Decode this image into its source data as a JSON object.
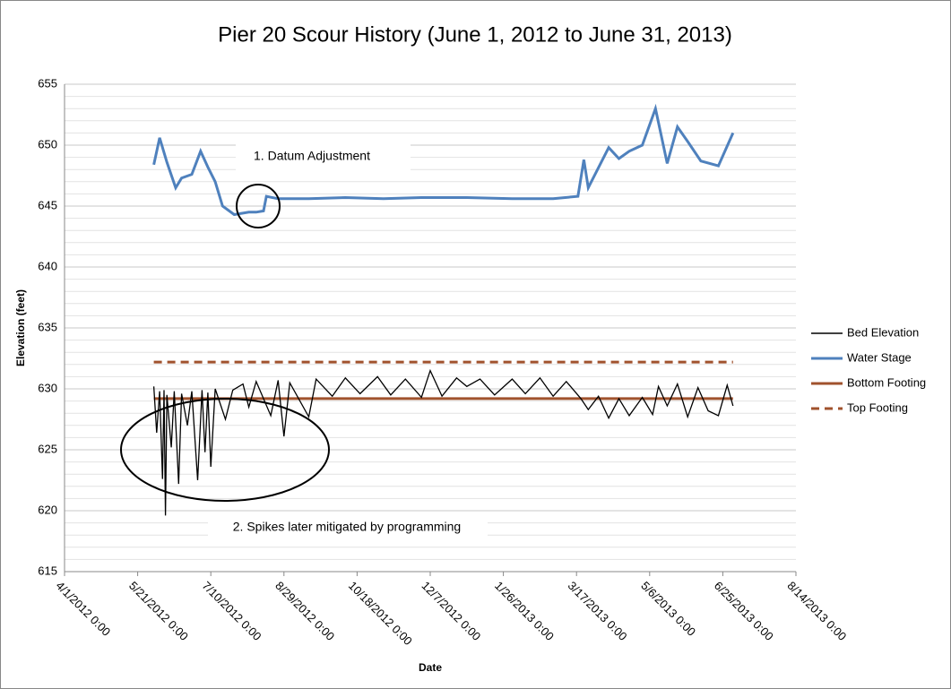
{
  "chart_data": {
    "type": "line",
    "title": "Pier 20 Scour History (June 1, 2012 to June 31, 2013)",
    "x_label": "Date",
    "y_label": "Elevation (feet)",
    "xlim": [
      "2012-04-01",
      "2013-08-14"
    ],
    "xticks": [
      {
        "value": "2012-04-01",
        "label": "4/1/2012 0:00"
      },
      {
        "value": "2012-05-21",
        "label": "5/21/2012 0:00"
      },
      {
        "value": "2012-07-10",
        "label": "7/10/2012 0:00"
      },
      {
        "value": "2012-08-29",
        "label": "8/29/2012 0:00"
      },
      {
        "value": "2012-10-18",
        "label": "10/18/2012 0:00"
      },
      {
        "value": "2012-12-07",
        "label": "12/7/2012 0:00"
      },
      {
        "value": "2013-01-26",
        "label": "1/26/2013 0:00"
      },
      {
        "value": "2013-03-17",
        "label": "3/17/2013 0:00"
      },
      {
        "value": "2013-05-06",
        "label": "5/6/2013 0:00"
      },
      {
        "value": "2013-06-25",
        "label": "6/25/2013 0:00"
      },
      {
        "value": "2013-08-14",
        "label": "8/14/2013 0:00"
      }
    ],
    "ylim": [
      615,
      655
    ],
    "yticks": [
      615,
      620,
      625,
      630,
      635,
      640,
      645,
      650,
      655
    ],
    "grid": true,
    "minor_grid_interval": 1,
    "legend": "right",
    "annotations": [
      "1. Datum Adjustment",
      "2. Spikes later mitigated by programming"
    ],
    "series": [
      {
        "name": "Bed Elevation",
        "color": "#000000",
        "dash": false,
        "x": [
          "2012-06-01",
          "2012-06-03",
          "2012-06-05",
          "2012-06-07",
          "2012-06-08",
          "2012-06-09",
          "2012-06-10",
          "2012-06-13",
          "2012-06-15",
          "2012-06-18",
          "2012-06-20",
          "2012-06-24",
          "2012-06-27",
          "2012-07-01",
          "2012-07-04",
          "2012-07-06",
          "2012-07-08",
          "2012-07-10",
          "2012-07-13",
          "2012-07-20",
          "2012-07-25",
          "2012-08-01",
          "2012-08-05",
          "2012-08-10",
          "2012-08-20",
          "2012-08-25",
          "2012-08-29",
          "2012-09-02",
          "2012-09-15",
          "2012-09-20",
          "2012-10-01",
          "2012-10-10",
          "2012-10-20",
          "2012-11-01",
          "2012-11-10",
          "2012-11-20",
          "2012-12-01",
          "2012-12-07",
          "2012-12-15",
          "2012-12-25",
          "2013-01-01",
          "2013-01-10",
          "2013-01-20",
          "2013-02-01",
          "2013-02-10",
          "2013-02-20",
          "2013-03-01",
          "2013-03-10",
          "2013-03-20",
          "2013-03-25",
          "2013-04-01",
          "2013-04-08",
          "2013-04-15",
          "2013-04-22",
          "2013-05-01",
          "2013-05-08",
          "2013-05-12",
          "2013-05-18",
          "2013-05-25",
          "2013-06-01",
          "2013-06-08",
          "2013-06-15",
          "2013-06-22",
          "2013-06-28",
          "2013-07-02"
        ],
        "values": [
          630.2,
          626.4,
          629.8,
          622.6,
          629.9,
          619.6,
          629.5,
          625.2,
          629.8,
          622.2,
          629.6,
          627.0,
          629.8,
          622.5,
          629.9,
          624.8,
          629.7,
          623.6,
          630.0,
          627.5,
          629.9,
          630.4,
          628.5,
          630.6,
          627.8,
          630.7,
          626.1,
          630.5,
          627.7,
          630.8,
          629.4,
          630.9,
          629.6,
          631.0,
          629.5,
          630.8,
          629.3,
          631.5,
          629.4,
          630.9,
          630.2,
          630.8,
          629.5,
          630.8,
          629.6,
          630.9,
          629.4,
          630.6,
          629.2,
          628.3,
          629.4,
          627.6,
          629.2,
          627.8,
          629.3,
          627.9,
          630.2,
          628.6,
          630.4,
          627.7,
          630.1,
          628.2,
          627.8,
          630.3,
          628.6
        ]
      },
      {
        "name": "Water Stage",
        "color": "#4f81bd",
        "dash": false,
        "x": [
          "2012-06-01",
          "2012-06-05",
          "2012-06-10",
          "2012-06-16",
          "2012-06-20",
          "2012-06-27",
          "2012-07-03",
          "2012-07-08",
          "2012-07-13",
          "2012-07-18",
          "2012-07-26",
          "2012-08-05",
          "2012-08-10",
          "2012-08-15",
          "2012-08-17",
          "2012-08-25",
          "2012-09-15",
          "2012-10-10",
          "2012-11-05",
          "2012-12-01",
          "2013-01-01",
          "2013-02-01",
          "2013-03-01",
          "2013-03-18",
          "2013-03-22",
          "2013-03-25",
          "2013-04-08",
          "2013-04-15",
          "2013-04-22",
          "2013-05-01",
          "2013-05-10",
          "2013-05-18",
          "2013-05-25",
          "2013-06-01",
          "2013-06-10",
          "2013-06-22",
          "2013-07-02"
        ],
        "values": [
          648.4,
          650.6,
          648.6,
          646.5,
          647.3,
          647.6,
          649.5,
          648.2,
          647.0,
          645.0,
          644.3,
          644.5,
          644.5,
          644.6,
          645.8,
          645.6,
          645.6,
          645.7,
          645.6,
          645.7,
          645.7,
          645.6,
          645.6,
          645.8,
          648.8,
          646.5,
          649.8,
          648.9,
          649.5,
          650.0,
          653.0,
          648.5,
          651.5,
          650.3,
          648.7,
          648.3,
          651.0
        ]
      },
      {
        "name": "Bottom Footing",
        "color": "#a0522d",
        "dash": false,
        "x": [
          "2012-06-01",
          "2013-07-02"
        ],
        "values": [
          629.2,
          629.2
        ]
      },
      {
        "name": "Top Footing",
        "color": "#a0522d",
        "dash": true,
        "x": [
          "2012-06-01",
          "2013-07-02"
        ],
        "values": [
          632.2,
          632.2
        ]
      }
    ]
  }
}
